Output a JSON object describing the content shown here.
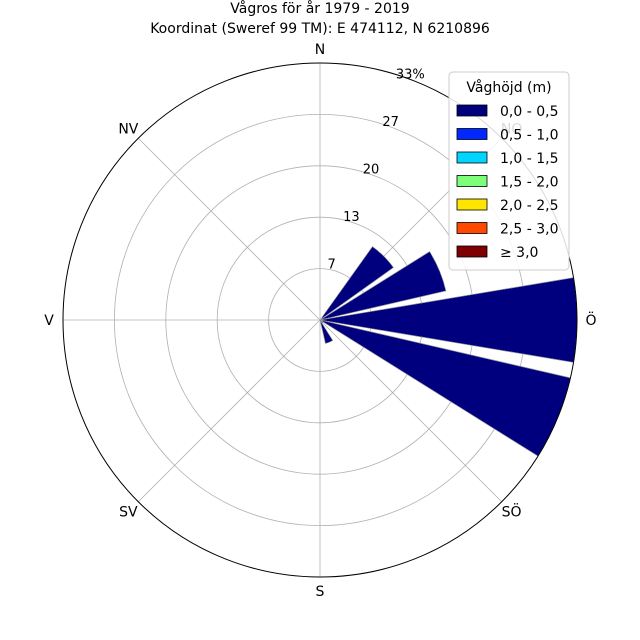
{
  "chart_data": {
    "type": "wind-rose",
    "title": "Vågros för år 1979 - 2019",
    "subtitle": "Koordinat (Sweref 99 TM): E 474112, N 6210896",
    "directions": [
      "N",
      "NO",
      "Ö",
      "SÖ",
      "S",
      "SV",
      "V",
      "NV"
    ],
    "radial_ticks": [
      "7",
      "13",
      "20",
      "27",
      "33%"
    ],
    "radial_tick_values": [
      6.6,
      13.2,
      19.8,
      26.4,
      33
    ],
    "rmax": 33,
    "grid": true,
    "legend": {
      "title": "Våghöjd (m)",
      "placement": "top-right",
      "entries": [
        {
          "label": "0,0 - 0,5",
          "color": "#00007f"
        },
        {
          "label": "0,5 - 1,0",
          "color": "#0028ff"
        },
        {
          "label": "1,0 - 1,5",
          "color": "#00d4ff"
        },
        {
          "label": "1,5 - 2,0",
          "color": "#7dff7a"
        },
        {
          "label": "2,0 - 2,5",
          "color": "#ffe500"
        },
        {
          "label": "2,5 - 3,0",
          "color": "#ff4800"
        },
        {
          "label": "≥ 3,0",
          "color": "#7f0000"
        }
      ]
    },
    "series": [
      {
        "name": "0,0 - 0,5",
        "color": "#00007f",
        "sectors": [
          {
            "direction_deg": 45,
            "value": 11.6
          },
          {
            "direction_deg": 67.5,
            "value": 16.6
          },
          {
            "direction_deg": 90,
            "value": 33
          },
          {
            "direction_deg": 112.5,
            "value": 33
          },
          {
            "direction_deg": 135,
            "value": 0.5
          },
          {
            "direction_deg": 157.5,
            "value": 3.1
          }
        ]
      }
    ]
  }
}
